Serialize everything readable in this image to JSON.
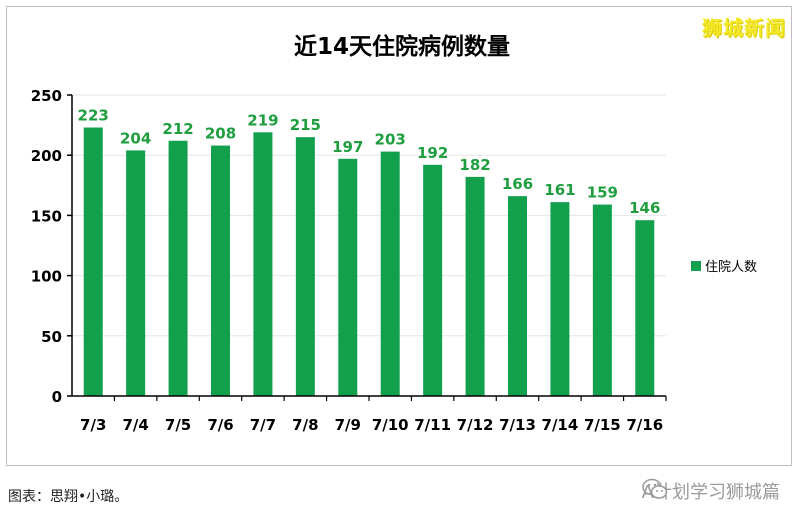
{
  "brand": {
    "logo_text": "狮城新闻"
  },
  "footer": {
    "credit": "图表：思翔•小璐。",
    "wechat_account": "A计划学习狮城篇"
  },
  "colors": {
    "bar": "#12a04d",
    "label": "#1f9e3f",
    "axis": "#000000",
    "grid": "#e6e6e6"
  },
  "chart_data": {
    "type": "bar",
    "title": "近14天住院病例数量",
    "xlabel": "",
    "ylabel": "",
    "categories": [
      "7/3",
      "7/4",
      "7/5",
      "7/6",
      "7/7",
      "7/8",
      "7/9",
      "7/10",
      "7/11",
      "7/12",
      "7/13",
      "7/14",
      "7/15",
      "7/16"
    ],
    "series": [
      {
        "name": "住院人数",
        "values": [
          223,
          204,
          212,
          208,
          219,
          215,
          197,
          203,
          192,
          182,
          166,
          161,
          159,
          146
        ]
      }
    ],
    "ylim": [
      0,
      250
    ],
    "yticks": [
      0,
      50,
      100,
      150,
      200,
      250
    ],
    "grid": true,
    "legend": "right",
    "data_labels": true
  }
}
